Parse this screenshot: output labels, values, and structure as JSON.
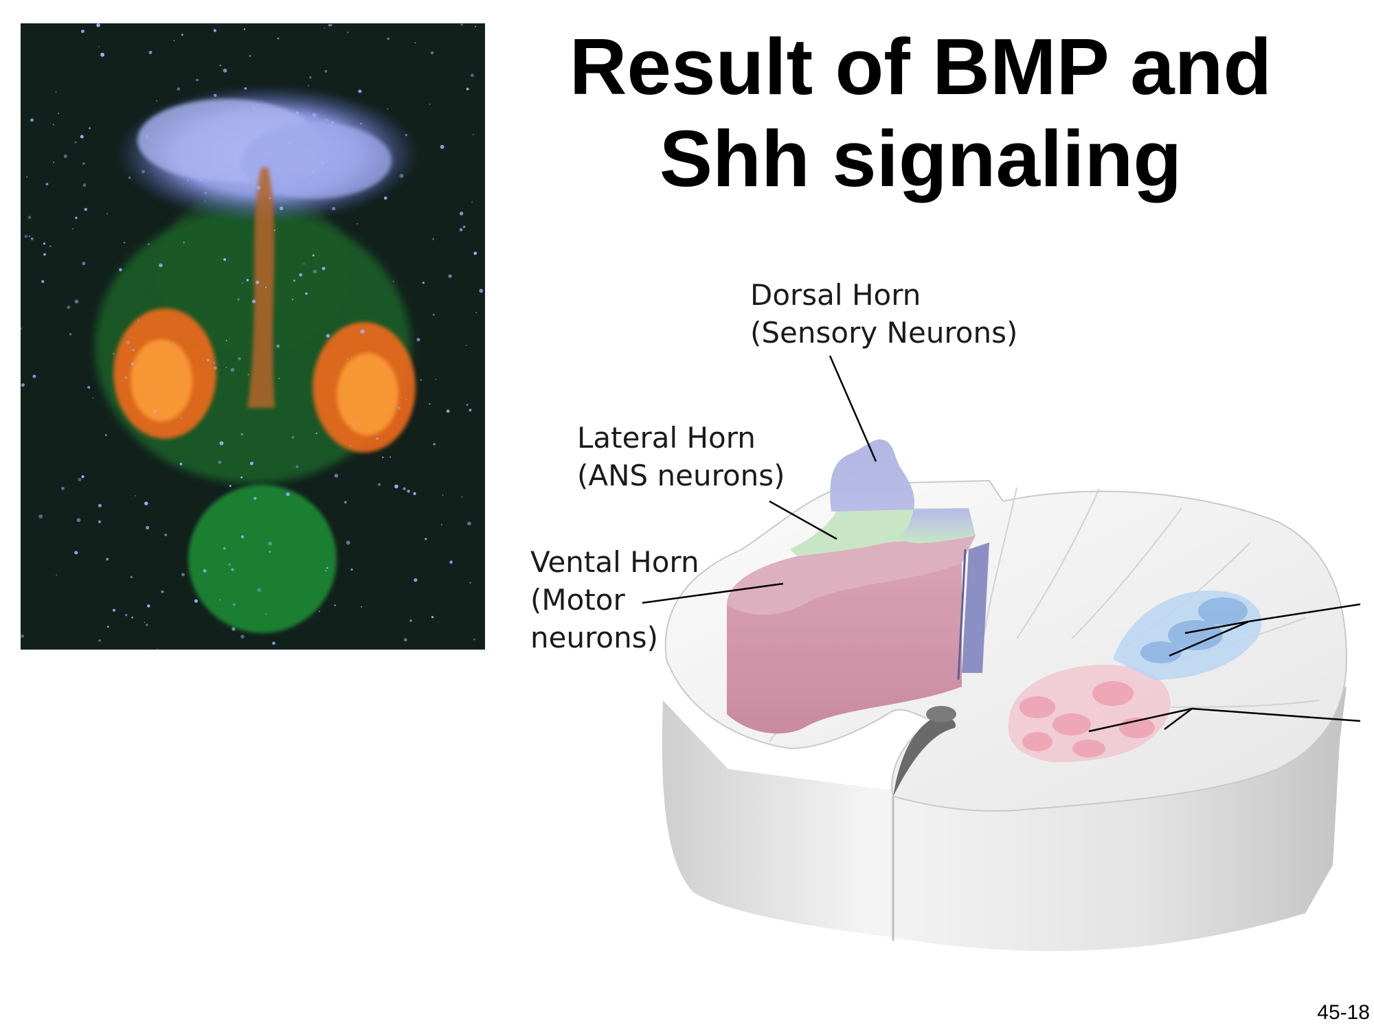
{
  "slide": {
    "title_line1": "Result of BMP and",
    "title_line2": "Shh signaling",
    "slide_number": "45-18"
  },
  "labels": {
    "dorsal_line1": "Dorsal Horn",
    "dorsal_line2": "(Sensory Neurons)",
    "lateral_line1": "Lateral Horn",
    "lateral_line2": "(ANS neurons)",
    "ventral_line1": "Vental Horn",
    "ventral_line2": "(Motor",
    "ventral_line3": "neurons)"
  },
  "colors": {
    "photo_background": "#12201c",
    "dorsal_region": "#b8bde6",
    "lateral_region": "#c8e6c6",
    "ventral_region": "#d9a2b4",
    "dorsal_interneurons": "#8fb6e3",
    "ventral_interneurons": "#eda3b3",
    "white_matter": "#e9e9e9"
  },
  "images": {
    "photo": "fluorescence-micrograph-neural-tube",
    "diagram": "spinal-cord-cross-section-3d"
  }
}
